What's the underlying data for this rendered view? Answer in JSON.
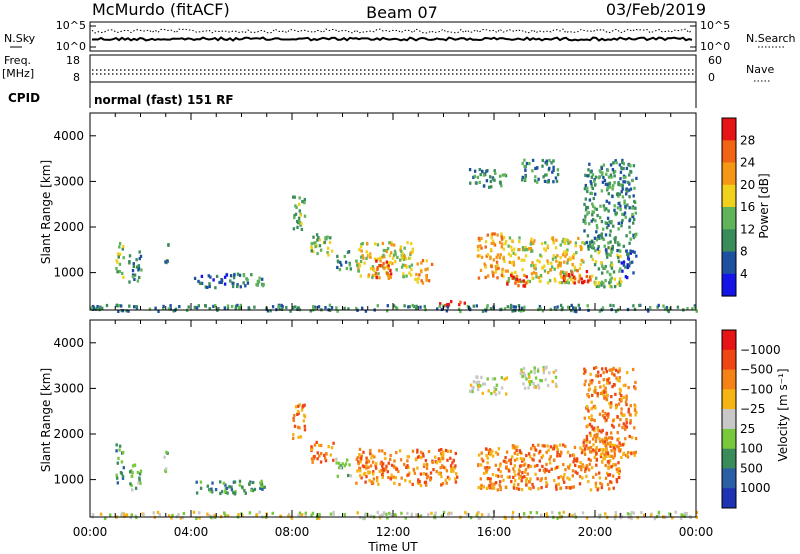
{
  "header": {
    "station": "McMurdo (fitACF)",
    "beam": "Beam 07",
    "date": "03/Feb/2019"
  },
  "status_panels": {
    "nsky_label": "N.Sky",
    "nsky_ticks": [
      "10^5",
      "10^0"
    ],
    "nsearch_label": "N.Search",
    "nsearch_ticks": [
      "10^5",
      "10^0"
    ],
    "freq_label_1": "Freq.",
    "freq_label_2": "[MHz]",
    "freq_ticks": [
      "18",
      "8"
    ],
    "nave_label": "Nave",
    "nave_ticks": [
      "60",
      "0"
    ],
    "cpid_label": "CPID",
    "cpid_text": "normal (fast) 151 RF"
  },
  "chart_data": [
    {
      "type": "heatmap",
      "title": "",
      "ylabel": "Slant Range [km]",
      "xlabel": "Time UT",
      "ylim": [
        180,
        4500
      ],
      "yticks": [
        "1000",
        "2000",
        "3000",
        "4000"
      ],
      "xticks": [
        "00:00",
        "04:00",
        "08:00",
        "12:00",
        "16:00",
        "20:00",
        "00:00"
      ],
      "colorbar_label": "Power [dB]",
      "colorbar_ticks": [
        "4",
        "8",
        "12",
        "16",
        "20",
        "24",
        "28"
      ],
      "colors": [
        "#1414e6",
        "#1e50a0",
        "#3a8c5a",
        "#5fb45a",
        "#f0d21e",
        "#f59614",
        "#f06414",
        "#e61414"
      ],
      "clusters": [
        {
          "t0": 0.05,
          "t1": 0.09,
          "r0": 200,
          "r1": 300,
          "level": 1
        },
        {
          "t0": 1.0,
          "t1": 1.3,
          "r0": 900,
          "r1": 1800,
          "level": 3
        },
        {
          "t0": 1.5,
          "t1": 2.0,
          "r0": 800,
          "r1": 1500,
          "level": 2
        },
        {
          "t0": 2.9,
          "t1": 3.1,
          "r0": 1200,
          "r1": 1700,
          "level": 2
        },
        {
          "t0": 4.1,
          "t1": 5.8,
          "r0": 700,
          "r1": 1000,
          "level": 1
        },
        {
          "t0": 5.8,
          "t1": 6.9,
          "r0": 700,
          "r1": 1000,
          "level": 2
        },
        {
          "t0": 8.0,
          "t1": 8.5,
          "r0": 1900,
          "r1": 2700,
          "level": 3
        },
        {
          "t0": 8.7,
          "t1": 9.6,
          "r0": 1400,
          "r1": 1900,
          "level": 3
        },
        {
          "t0": 9.7,
          "t1": 10.3,
          "r0": 1100,
          "r1": 1500,
          "level": 2
        },
        {
          "t0": 10.5,
          "t1": 12.8,
          "r0": 900,
          "r1": 1700,
          "level": 4
        },
        {
          "t0": 11.2,
          "t1": 11.9,
          "r0": 900,
          "r1": 1300,
          "level": 6
        },
        {
          "t0": 12.8,
          "t1": 13.5,
          "r0": 800,
          "r1": 1300,
          "level": 5
        },
        {
          "t0": 13.8,
          "t1": 14.8,
          "r0": 300,
          "r1": 450,
          "level": 7
        },
        {
          "t0": 15.0,
          "t1": 16.5,
          "r0": 2900,
          "r1": 3300,
          "level": 2
        },
        {
          "t0": 17.0,
          "t1": 18.5,
          "r0": 3000,
          "r1": 3500,
          "level": 2
        },
        {
          "t0": 15.3,
          "t1": 16.4,
          "r0": 900,
          "r1": 1900,
          "level": 5
        },
        {
          "t0": 16.4,
          "t1": 19.5,
          "r0": 800,
          "r1": 1800,
          "level": 4
        },
        {
          "t0": 16.4,
          "t1": 17.3,
          "r0": 700,
          "r1": 1000,
          "level": 7
        },
        {
          "t0": 18.6,
          "t1": 19.8,
          "r0": 800,
          "r1": 1100,
          "level": 7
        },
        {
          "t0": 19.8,
          "t1": 21.0,
          "r0": 700,
          "r1": 1600,
          "level": 3
        },
        {
          "t0": 21.0,
          "t1": 21.6,
          "r0": 900,
          "r1": 1500,
          "level": 1
        },
        {
          "t0": 19.5,
          "t1": 21.6,
          "r0": 1500,
          "r1": 3500,
          "level": 2
        },
        {
          "t0": 0.0,
          "t1": 24.0,
          "r0": 180,
          "r1": 320,
          "level": 2
        }
      ]
    },
    {
      "type": "heatmap",
      "title": "",
      "ylabel": "Slant Range [km]",
      "xlabel": "Time UT",
      "ylim": [
        180,
        4500
      ],
      "yticks": [
        "1000",
        "2000",
        "3000",
        "4000"
      ],
      "xticks": [
        "00:00",
        "04:00",
        "08:00",
        "12:00",
        "16:00",
        "20:00",
        "00:00"
      ],
      "colorbar_label": "Velocity [m s⁻¹]",
      "colorbar_ticks": [
        "1000",
        "500",
        "100",
        "25",
        "−25",
        "−100",
        "−500",
        "−1000"
      ],
      "colors": [
        "#1e32b4",
        "#2a5fa5",
        "#3a8c5a",
        "#78c83c",
        "#c8c8c8",
        "#f5b414",
        "#f58214",
        "#f04614",
        "#e61414"
      ],
      "clusters": [
        {
          "t0": 1.0,
          "t1": 1.3,
          "r0": 900,
          "r1": 1800,
          "level": 2
        },
        {
          "t0": 1.5,
          "t1": 2.0,
          "r0": 800,
          "r1": 1400,
          "level": 3
        },
        {
          "t0": 2.9,
          "t1": 3.1,
          "r0": 1200,
          "r1": 1700,
          "level": 3
        },
        {
          "t0": 4.1,
          "t1": 6.9,
          "r0": 700,
          "r1": 1000,
          "level": 2
        },
        {
          "t0": 8.0,
          "t1": 8.5,
          "r0": 1900,
          "r1": 2700,
          "level": 6
        },
        {
          "t0": 8.7,
          "t1": 9.6,
          "r0": 1400,
          "r1": 1900,
          "level": 6
        },
        {
          "t0": 9.7,
          "t1": 10.3,
          "r0": 1100,
          "r1": 1500,
          "level": 3
        },
        {
          "t0": 10.5,
          "t1": 14.5,
          "r0": 900,
          "r1": 1700,
          "level": 6
        },
        {
          "t0": 15.3,
          "t1": 21.0,
          "r0": 800,
          "r1": 1800,
          "level": 6
        },
        {
          "t0": 17.0,
          "t1": 18.5,
          "r0": 3000,
          "r1": 3500,
          "level": 4
        },
        {
          "t0": 15.0,
          "t1": 16.5,
          "r0": 2900,
          "r1": 3300,
          "level": 4
        },
        {
          "t0": 19.5,
          "t1": 21.6,
          "r0": 1500,
          "r1": 3500,
          "level": 6
        },
        {
          "t0": 0.0,
          "t1": 24.0,
          "r0": 180,
          "r1": 320,
          "level": 4
        }
      ]
    }
  ]
}
